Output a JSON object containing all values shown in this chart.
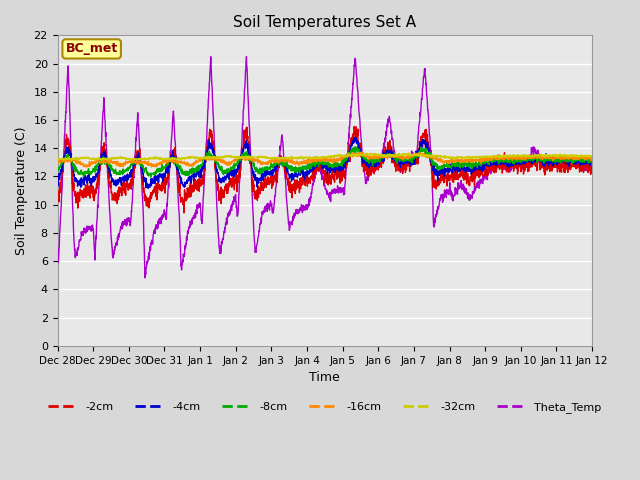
{
  "title": "Soil Temperatures Set A",
  "xlabel": "Time",
  "ylabel": "Soil Temperature (C)",
  "ylim": [
    0,
    22
  ],
  "yticks": [
    0,
    2,
    4,
    6,
    8,
    10,
    12,
    14,
    16,
    18,
    20,
    22
  ],
  "xtick_labels": [
    "Dec 28",
    "Dec 29",
    "Dec 30",
    "Dec 31",
    "Jan 1",
    "Jan 2",
    "Jan 3",
    "Jan 4",
    "Jan 5",
    "Jan 6",
    "Jan 7",
    "Jan 8",
    "Jan 9",
    "Jan 10",
    "Jan 11",
    "Jan 12"
  ],
  "annotation_text": "BC_met",
  "annotation_bg": "#ffff99",
  "annotation_border": "#aa8800",
  "annotation_text_color": "#880000",
  "colors": {
    "-2cm": "#dd0000",
    "-4cm": "#0000cc",
    "-8cm": "#00aa00",
    "-16cm": "#ff8800",
    "-32cm": "#cccc00",
    "Theta_Temp": "#aa00cc"
  },
  "background_color": "#d8d8d8",
  "plot_bg_color": "#e8e8e8",
  "grid_color": "#ffffff",
  "figsize": [
    6.4,
    4.8
  ],
  "dpi": 100
}
